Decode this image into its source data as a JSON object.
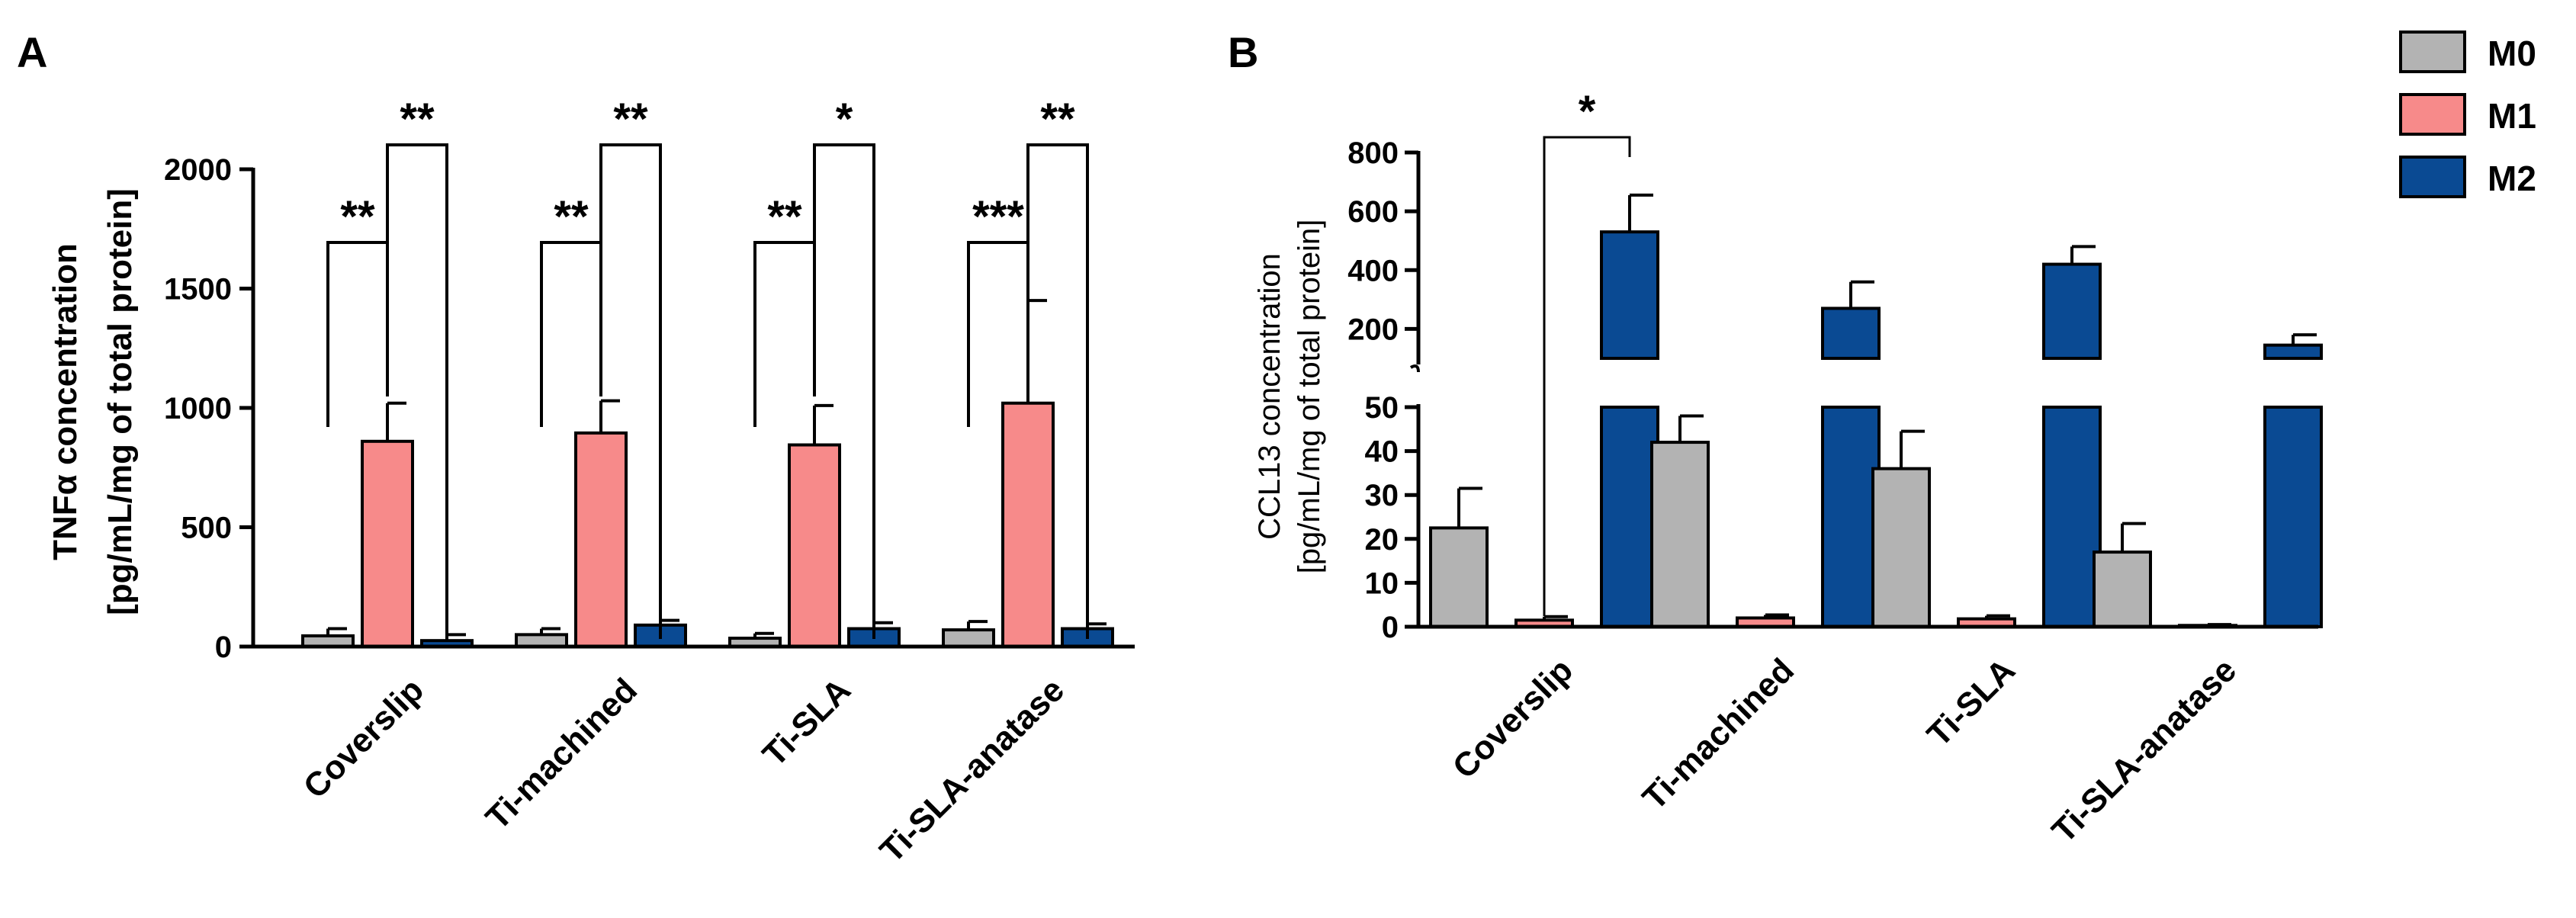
{
  "panel_a_label": "A",
  "panel_b_label": "B",
  "legend": [
    {
      "name": "M0",
      "color": "#b3b3b3"
    },
    {
      "name": "M1",
      "color": "#f78a8a"
    },
    {
      "name": "M2",
      "color": "#0a4a93"
    }
  ],
  "chart_data": [
    {
      "id": "A",
      "type": "bar",
      "title": "",
      "ylabel_line1": "TNFα concentration",
      "ylabel_line2": "[pg/mL/mg of total protein]",
      "xlabel": "",
      "categories": [
        "Coverslip",
        "Ti-machined",
        "Ti-SLA",
        "Ti-SLA-anatase"
      ],
      "ylim": [
        0,
        2000
      ],
      "yticks": [
        0,
        500,
        1000,
        1500,
        2000
      ],
      "series": [
        {
          "name": "M0",
          "values": [
            45,
            50,
            35,
            70
          ],
          "errors": [
            30,
            25,
            20,
            35
          ]
        },
        {
          "name": "M1",
          "values": [
            860,
            895,
            845,
            1020
          ],
          "errors": [
            160,
            135,
            165,
            430
          ]
        },
        {
          "name": "M2",
          "values": [
            25,
            90,
            75,
            75
          ],
          "errors": [
            25,
            20,
            25,
            20
          ]
        }
      ],
      "significance": [
        {
          "category": "Coverslip",
          "comparison": "M0-M1",
          "label": "**"
        },
        {
          "category": "Coverslip",
          "comparison": "M1-M2",
          "label": "**"
        },
        {
          "category": "Ti-machined",
          "comparison": "M0-M1",
          "label": "**"
        },
        {
          "category": "Ti-machined",
          "comparison": "M1-M2",
          "label": "**"
        },
        {
          "category": "Ti-SLA",
          "comparison": "M0-M1",
          "label": "**"
        },
        {
          "category": "Ti-SLA",
          "comparison": "M1-M2",
          "label": "*"
        },
        {
          "category": "Ti-SLA-anatase",
          "comparison": "M0-M1",
          "label": "***"
        },
        {
          "category": "Ti-SLA-anatase",
          "comparison": "M1-M2",
          "label": "**"
        }
      ]
    },
    {
      "id": "B",
      "type": "bar",
      "title": "",
      "ylabel_line1": "CCL13 concentration",
      "ylabel_line2": "[pg/mL/mg of total protein]",
      "xlabel": "",
      "categories": [
        "Coverslip",
        "Ti-machined",
        "Ti-SLA",
        "Ti-SLA-anatase"
      ],
      "axis_break": true,
      "ylim_lower": [
        0,
        50
      ],
      "yticks_lower": [
        0,
        10,
        20,
        30,
        40,
        50
      ],
      "ylim_upper": [
        100,
        800
      ],
      "yticks_upper": [
        200,
        400,
        600,
        800
      ],
      "series": [
        {
          "name": "M0",
          "values": [
            22.5,
            42,
            36,
            17
          ],
          "errors": [
            9,
            6,
            8.5,
            6.5
          ]
        },
        {
          "name": "M1",
          "values": [
            1.5,
            2,
            1.8,
            0.3
          ],
          "errors": [
            0.8,
            0.7,
            0.7,
            0.2
          ]
        },
        {
          "name": "M2",
          "values": [
            530,
            270,
            420,
            145
          ],
          "errors": [
            125,
            90,
            60,
            35
          ]
        }
      ],
      "significance": [
        {
          "category": "Coverslip",
          "comparison": "M1-M2",
          "label": "*"
        }
      ]
    }
  ]
}
